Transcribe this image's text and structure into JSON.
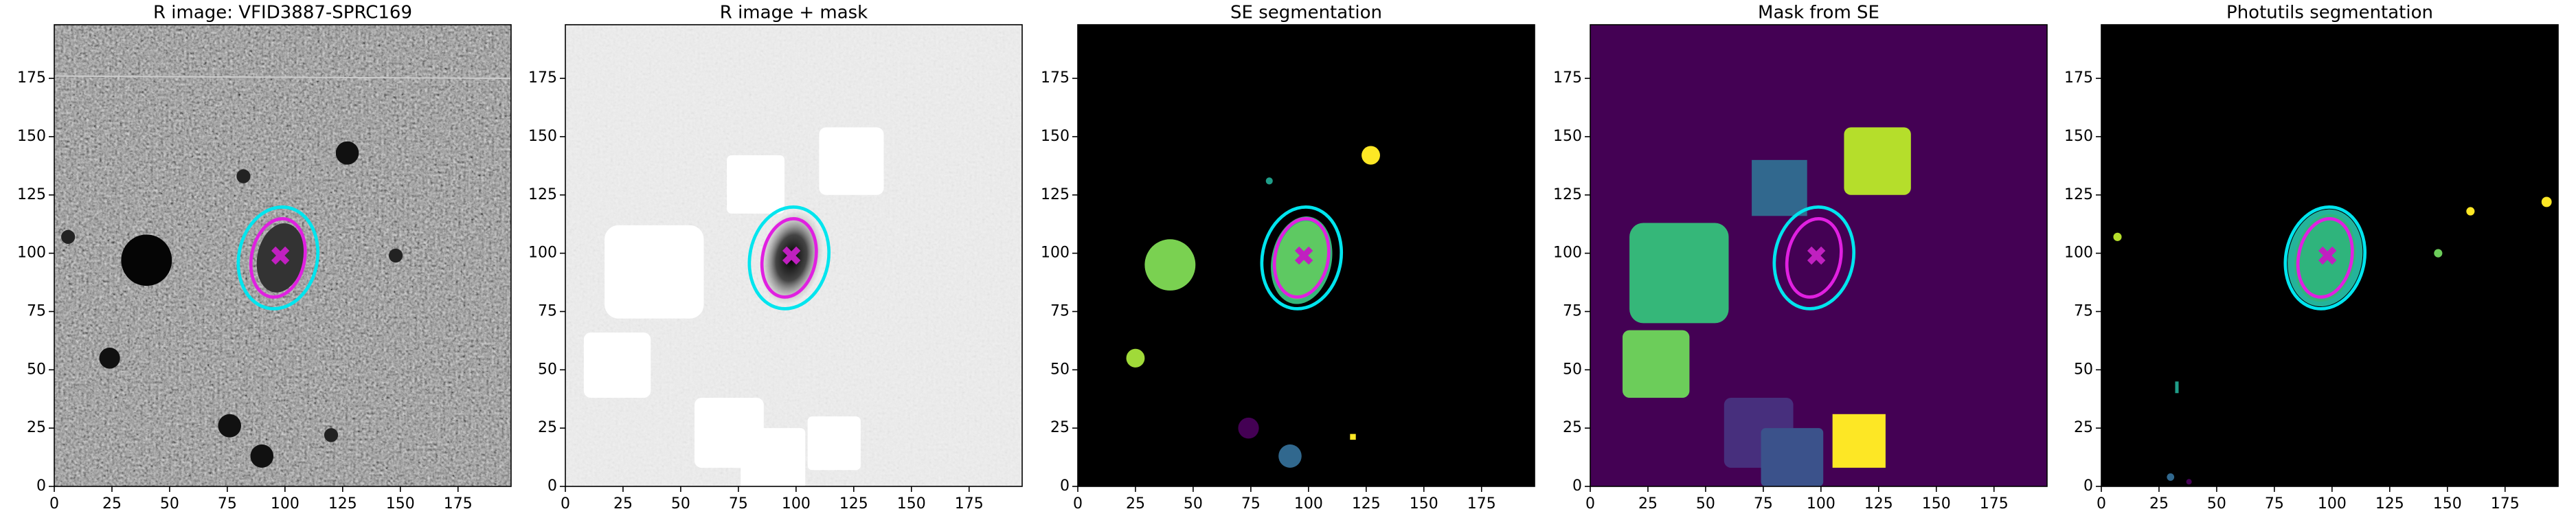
{
  "chart_data": [
    {
      "type": "image",
      "title": "R image: VFID3887-SPRC169",
      "xlim": [
        0,
        198
      ],
      "ylim": [
        0,
        198
      ],
      "xticks": [
        0,
        25,
        50,
        75,
        100,
        125,
        150,
        175
      ],
      "yticks": [
        0,
        25,
        50,
        75,
        100,
        125,
        150,
        175
      ]
    },
    {
      "type": "image",
      "title": "R image + mask",
      "xlim": [
        0,
        198
      ],
      "ylim": [
        0,
        198
      ],
      "xticks": [
        0,
        25,
        50,
        75,
        100,
        125,
        150,
        175
      ],
      "yticks": [
        0,
        25,
        50,
        75,
        100,
        125,
        150,
        175
      ]
    },
    {
      "type": "image",
      "title": "SE segmentation",
      "xlim": [
        0,
        198
      ],
      "ylim": [
        0,
        198
      ],
      "xticks": [
        0,
        25,
        50,
        75,
        100,
        125,
        150,
        175
      ],
      "yticks": [
        0,
        25,
        50,
        75,
        100,
        125,
        150,
        175
      ]
    },
    {
      "type": "image",
      "title": "Mask from SE",
      "xlim": [
        0,
        198
      ],
      "ylim": [
        0,
        198
      ],
      "xticks": [
        0,
        25,
        50,
        75,
        100,
        125,
        150,
        175
      ],
      "yticks": [
        0,
        25,
        50,
        75,
        100,
        125,
        150,
        175
      ]
    },
    {
      "type": "image",
      "title": "Photutils segmentation",
      "xlim": [
        0,
        198
      ],
      "ylim": [
        0,
        198
      ],
      "xticks": [
        0,
        25,
        50,
        75,
        100,
        125,
        150,
        175
      ],
      "yticks": [
        0,
        25,
        50,
        75,
        100,
        125,
        150,
        175
      ]
    }
  ]
}
